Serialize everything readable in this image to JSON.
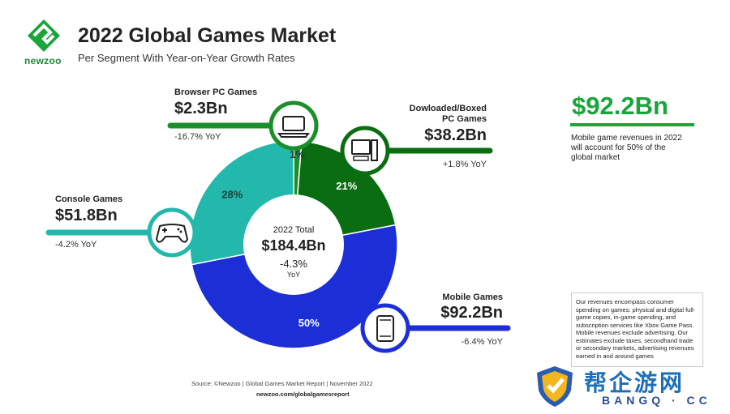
{
  "brand": {
    "name": "newzoo"
  },
  "header": {
    "title": "2022 Global Games Market",
    "subtitle": "Per Segment With Year-on-Year Growth Rates"
  },
  "chart_data": {
    "type": "pie",
    "title": "2022 Global Games Market",
    "subtitle": "Per Segment With Year-on-Year Growth Rates",
    "center": {
      "label": "2022 Total",
      "value": "$184.4Bn",
      "yoy": "-4.3%",
      "yoy_unit": "YoY"
    },
    "segments": [
      {
        "name": "Browser PC Games",
        "value": "$2.3Bn",
        "value_num": 2.3,
        "share": "1%",
        "share_num": 1,
        "yoy": "-16.7% YoY",
        "color": "#1b8f2b",
        "icon": "laptop-icon"
      },
      {
        "name": "Dowloaded/Boxed PC Games",
        "value": "$38.2Bn",
        "value_num": 38.2,
        "share": "21%",
        "share_num": 21,
        "yoy": "+1.8% YoY",
        "color": "#0a6d12",
        "icon": "desktop-pc-icon"
      },
      {
        "name": "Mobile Games",
        "value": "$92.2Bn",
        "value_num": 92.2,
        "share": "50%",
        "share_num": 50,
        "yoy": "-6.4% YoY",
        "color": "#1c2fd6",
        "icon": "smartphone-icon"
      },
      {
        "name": "Console Games",
        "value": "$51.8Bn",
        "value_num": 51.8,
        "share": "28%",
        "share_num": 28,
        "yoy": "-4.2% YoY",
        "color": "#22b8ab",
        "icon": "gamepad-icon"
      }
    ]
  },
  "highlight": {
    "value": "$92.2Bn",
    "note": "Mobile game revenues in 2022 will account for 50% of the global market",
    "color": "#1aa53b"
  },
  "disclaimer": "Our revenues encompass consumer spending on games: physical and digital full-game copies, in-game spending, and subscription services like Xbox Game Pass. Mobile revenues exclude advertising. Our estimates exclude taxes, secondhand trade or secondary markets, advertising revenues earned in and around games",
  "footer": {
    "source": "Source: ©Newzoo | Global Games Market Report | November 2022",
    "url": "newzoo.com/globalgamesreport"
  },
  "watermark": {
    "cn": "帮企游网",
    "en": "BANGQ · CC"
  }
}
